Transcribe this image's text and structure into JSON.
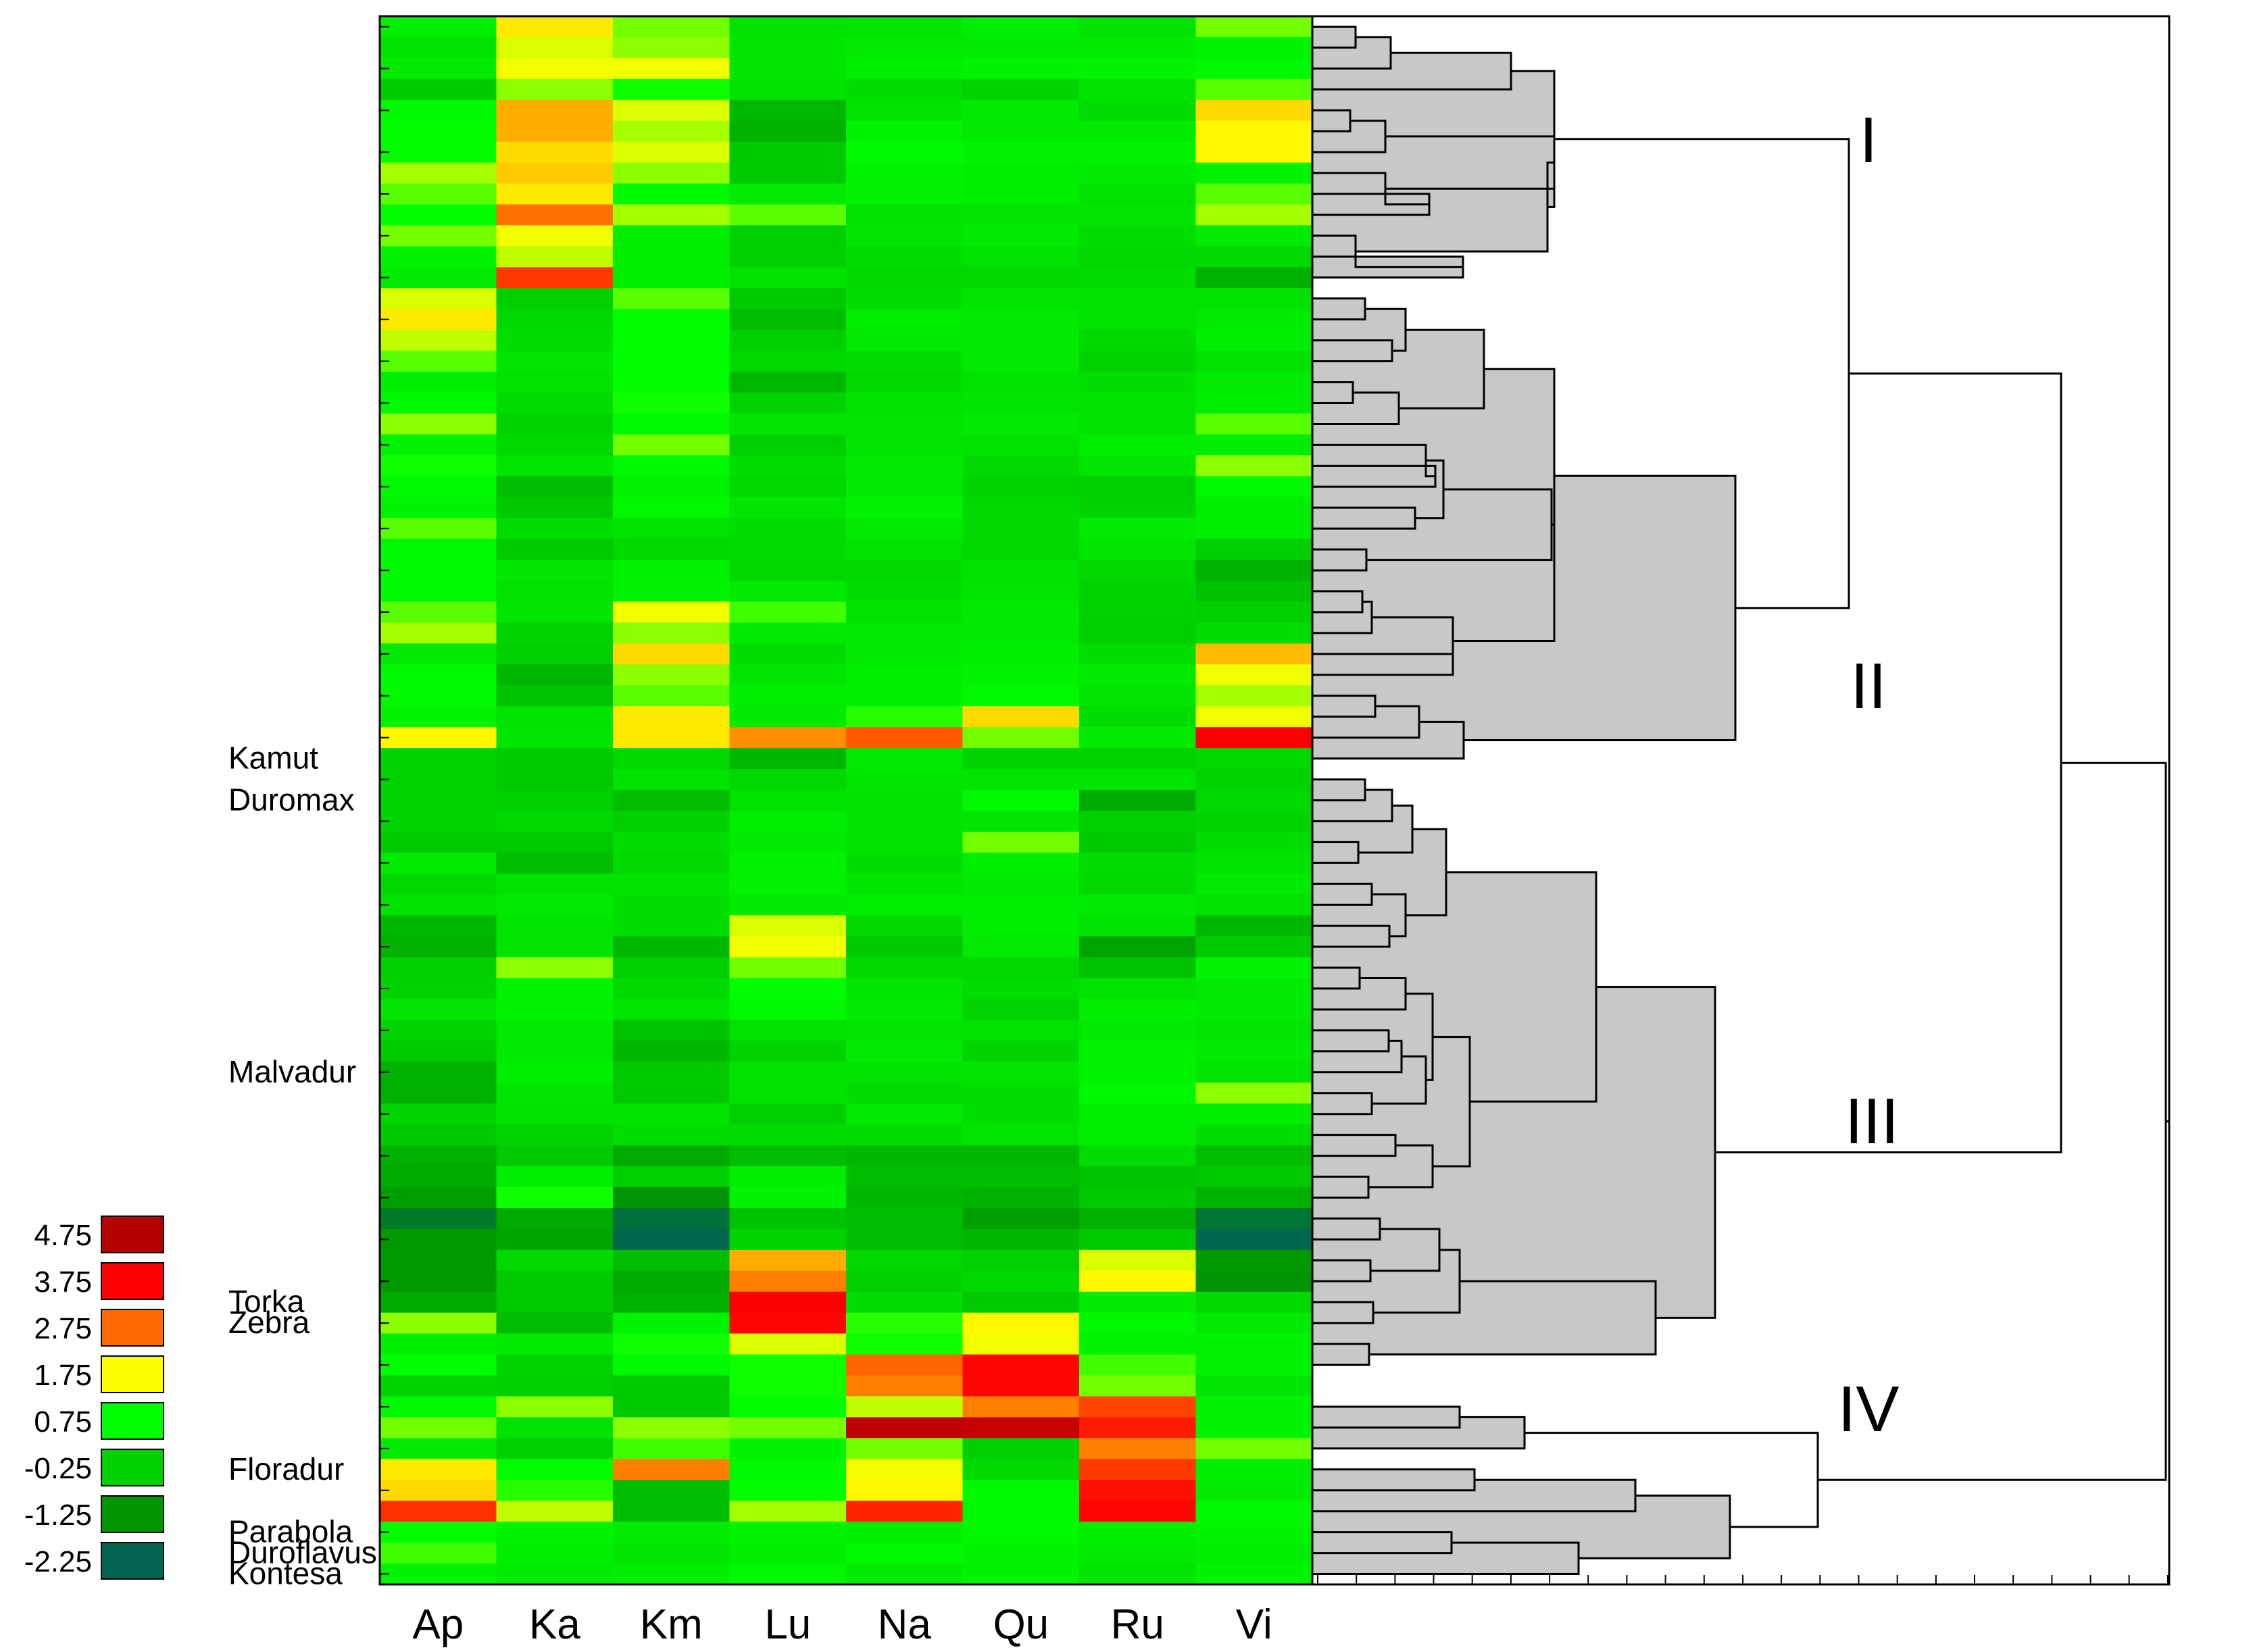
{
  "chart_data": {
    "type": "heatmap",
    "title": "",
    "columns": [
      "Ap",
      "Ka",
      "Km",
      "Lu",
      "Na",
      "Qu",
      "Ru",
      "Vi"
    ],
    "n_rows": 75,
    "row_labels": [
      {
        "row": 35,
        "label": "Kamut"
      },
      {
        "row": 37,
        "label": "Duromax"
      },
      {
        "row": 50,
        "label": "Malvadur"
      },
      {
        "row": 61,
        "label": "Torka"
      },
      {
        "row": 62,
        "label": "Zebra"
      },
      {
        "row": 69,
        "label": "Floradur"
      },
      {
        "row": 72,
        "label": "Parabola"
      },
      {
        "row": 73,
        "label": "Duroflavus"
      },
      {
        "row": 74,
        "label": "Kontesa"
      }
    ],
    "color_scale": {
      "values": [
        4.75,
        3.75,
        2.75,
        1.75,
        0.75,
        -0.25,
        -1.25,
        -2.25
      ],
      "labels": [
        "4.75",
        "3.75",
        "2.75",
        "1.75",
        "0.75",
        "-0.25",
        "-1.25",
        "-2.25"
      ],
      "colors": [
        "#b40000",
        "#ff0000",
        "#ff6a00",
        "#ffff00",
        "#00ff00",
        "#00d200",
        "#009600",
        "#006450"
      ]
    },
    "cluster_labels": [
      "I",
      "II",
      "III",
      "IV"
    ],
    "cluster_ranges": [
      [
        0,
        12
      ],
      [
        13,
        35
      ],
      [
        36,
        65
      ],
      [
        66,
        74
      ]
    ],
    "values": [
      [
        0.4,
        1.9,
        1.2,
        0.1,
        0.2,
        0.4,
        0.1,
        1.2
      ],
      [
        0.1,
        1.6,
        1.3,
        0.2,
        0.3,
        0.3,
        0.3,
        0.5
      ],
      [
        0.3,
        1.7,
        1.7,
        0.2,
        0.4,
        0.5,
        0.5,
        0.6
      ],
      [
        -0.4,
        1.3,
        0.8,
        0.1,
        0.0,
        -0.2,
        0.1,
        1.1
      ],
      [
        0.6,
        2.3,
        1.6,
        -0.7,
        0.1,
        0.3,
        0.0,
        2.0
      ],
      [
        0.7,
        2.3,
        1.4,
        -0.8,
        0.5,
        0.3,
        0.3,
        1.8
      ],
      [
        0.7,
        2.0,
        1.6,
        -0.4,
        0.6,
        0.5,
        0.5,
        1.8
      ],
      [
        1.4,
        2.1,
        1.3,
        -0.4,
        0.5,
        0.4,
        0.3,
        0.5
      ],
      [
        1.1,
        1.9,
        0.6,
        0.3,
        0.5,
        0.4,
        0.1,
        1.1
      ],
      [
        0.7,
        2.7,
        1.4,
        1.1,
        0.1,
        0.2,
        0.2,
        1.4
      ],
      [
        1.2,
        1.7,
        0.4,
        -0.3,
        0.2,
        0.3,
        0.0,
        0.3
      ],
      [
        0.5,
        1.5,
        0.4,
        -0.3,
        0.0,
        0.1,
        -0.1,
        -0.1
      ],
      [
        0.3,
        3.2,
        0.4,
        0.1,
        -0.1,
        -0.1,
        0.0,
        -0.8
      ],
      [
        1.6,
        -0.3,
        1.1,
        -0.4,
        0.0,
        0.2,
        0.1,
        0.1
      ],
      [
        1.9,
        -0.1,
        0.7,
        -0.6,
        0.4,
        0.3,
        0.1,
        0.3
      ],
      [
        1.5,
        0.0,
        0.7,
        -0.3,
        0.3,
        0.3,
        -0.1,
        0.4
      ],
      [
        1.1,
        0.2,
        0.7,
        -0.1,
        0.0,
        0.3,
        -0.2,
        0.1
      ],
      [
        0.4,
        0.1,
        0.7,
        -0.7,
        -0.1,
        0.1,
        0.0,
        0.3
      ],
      [
        0.6,
        0.0,
        0.8,
        -0.2,
        0.1,
        0.2,
        0.1,
        0.4
      ],
      [
        1.3,
        -0.2,
        0.6,
        0.2,
        0.2,
        0.3,
        0.1,
        1.1
      ],
      [
        0.5,
        -0.1,
        1.2,
        -0.3,
        0.2,
        0.1,
        0.4,
        0.4
      ],
      [
        0.8,
        0.2,
        0.6,
        0.0,
        0.3,
        -0.1,
        0.2,
        1.3
      ],
      [
        0.6,
        -0.6,
        0.5,
        -0.1,
        0.3,
        -0.2,
        -0.3,
        0.6
      ],
      [
        0.5,
        -0.4,
        0.6,
        0.2,
        0.5,
        -0.1,
        -0.2,
        0.4
      ],
      [
        1.1,
        0.0,
        0.1,
        0.0,
        0.3,
        -0.1,
        0.3,
        0.4
      ],
      [
        0.6,
        -0.4,
        -0.1,
        0.0,
        0.1,
        -0.1,
        0.2,
        -0.3
      ],
      [
        0.6,
        0.2,
        0.5,
        -0.1,
        -0.1,
        0.1,
        -0.1,
        -0.8
      ],
      [
        0.6,
        0.1,
        0.5,
        0.3,
        0.0,
        0.2,
        -0.2,
        -0.5
      ],
      [
        1.1,
        0.2,
        1.7,
        1.0,
        0.1,
        0.3,
        -0.2,
        -0.3
      ],
      [
        1.4,
        -0.2,
        1.3,
        0.3,
        0.3,
        0.3,
        -0.3,
        0.0
      ],
      [
        0.3,
        -0.3,
        2.0,
        0.0,
        0.3,
        0.4,
        0.0,
        2.2
      ],
      [
        0.6,
        -0.7,
        1.3,
        0.2,
        0.4,
        0.5,
        0.3,
        1.7
      ],
      [
        0.6,
        -0.5,
        1.1,
        0.4,
        0.4,
        0.6,
        0.2,
        1.4
      ],
      [
        0.5,
        0.1,
        1.9,
        0.3,
        0.9,
        2.0,
        0.0,
        1.7
      ],
      [
        1.8,
        0.2,
        1.9,
        2.5,
        2.9,
        1.2,
        0.3,
        3.8
      ],
      [
        -0.2,
        -0.4,
        -0.1,
        -0.7,
        0.3,
        -0.2,
        -0.2,
        -0.1
      ],
      [
        -0.2,
        -0.4,
        0.1,
        -0.1,
        0.2,
        0.2,
        0.2,
        -0.2
      ],
      [
        -0.2,
        -0.3,
        -0.6,
        0.1,
        0.1,
        0.6,
        -0.9,
        -0.1
      ],
      [
        -0.2,
        -0.1,
        -0.3,
        0.4,
        0.1,
        0.2,
        -0.3,
        -0.2
      ],
      [
        -0.4,
        -0.4,
        0.0,
        0.3,
        0.1,
        1.2,
        -0.4,
        0.0
      ],
      [
        0.3,
        -0.6,
        -0.1,
        0.5,
        0.0,
        0.4,
        0.0,
        0.1
      ],
      [
        -0.1,
        0.1,
        0.1,
        0.5,
        0.2,
        0.3,
        -0.1,
        0.3
      ],
      [
        0.1,
        0.3,
        0.0,
        0.3,
        0.4,
        0.4,
        0.3,
        0.1
      ],
      [
        -0.7,
        0.2,
        0.0,
        1.6,
        -0.1,
        0.4,
        0.1,
        -0.7
      ],
      [
        -0.8,
        0.2,
        -0.7,
        1.7,
        -0.4,
        0.3,
        -1.0,
        -0.4
      ],
      [
        -0.3,
        1.3,
        -0.3,
        1.2,
        -0.1,
        -0.1,
        -0.5,
        0.5
      ],
      [
        -0.2,
        0.5,
        -0.1,
        0.7,
        0.2,
        0.0,
        0.1,
        0.3
      ],
      [
        0.2,
        0.5,
        0.2,
        0.6,
        0.3,
        -0.2,
        0.4,
        0.3
      ],
      [
        -0.2,
        0.3,
        -0.5,
        0.1,
        0.2,
        0.1,
        0.3,
        0.2
      ],
      [
        -0.4,
        0.3,
        -0.7,
        -0.2,
        0.3,
        -0.2,
        0.5,
        0.3
      ],
      [
        -0.8,
        0.4,
        -0.4,
        0.1,
        0.1,
        0.2,
        0.5,
        0.2
      ],
      [
        -0.8,
        0.2,
        -0.4,
        0.1,
        0.0,
        0.0,
        0.6,
        1.3
      ],
      [
        -0.2,
        0.1,
        0.1,
        -0.3,
        0.3,
        0.0,
        0.4,
        0.4
      ],
      [
        -0.4,
        -0.2,
        0.0,
        0.0,
        0.0,
        0.2,
        0.4,
        0.0
      ],
      [
        -0.8,
        -0.4,
        -0.9,
        -0.6,
        -0.7,
        -0.7,
        0.0,
        -0.6
      ],
      [
        -0.9,
        0.4,
        -0.3,
        0.4,
        -0.6,
        -0.6,
        -0.5,
        -0.4
      ],
      [
        -1.1,
        0.8,
        -1.3,
        0.5,
        -0.7,
        -0.8,
        -0.4,
        -0.8
      ],
      [
        -1.8,
        -0.9,
        -2.0,
        -0.5,
        -0.6,
        -1.1,
        -0.8,
        -1.9
      ],
      [
        -1.2,
        -1.0,
        -2.2,
        -0.2,
        -0.6,
        -0.7,
        -0.4,
        -2.2
      ],
      [
        -1.2,
        -0.1,
        -0.6,
        2.3,
        -0.1,
        -0.3,
        1.6,
        -1.2
      ],
      [
        -1.2,
        -0.4,
        -0.9,
        2.6,
        -0.3,
        -0.1,
        1.8,
        -1.3
      ],
      [
        -0.9,
        -0.4,
        -0.8,
        3.8,
        0.0,
        -0.4,
        0.3,
        -0.1
      ],
      [
        1.3,
        -0.6,
        0.5,
        3.7,
        0.9,
        1.8,
        0.6,
        0.3
      ],
      [
        0.4,
        0.3,
        0.8,
        1.6,
        0.8,
        1.7,
        0.5,
        0.5
      ],
      [
        0.7,
        -0.2,
        0.6,
        0.8,
        2.8,
        3.7,
        1.0,
        0.5
      ],
      [
        -0.2,
        -0.3,
        -0.4,
        0.8,
        2.6,
        3.7,
        1.2,
        0.2
      ],
      [
        0.6,
        1.3,
        -0.4,
        0.7,
        1.5,
        2.6,
        3.1,
        0.5
      ],
      [
        1.2,
        0.1,
        1.3,
        1.2,
        4.6,
        4.5,
        3.5,
        0.5
      ],
      [
        0.3,
        -0.3,
        1.0,
        0.5,
        1.2,
        -0.3,
        2.6,
        1.2
      ],
      [
        1.9,
        0.7,
        2.6,
        0.6,
        1.7,
        -0.1,
        3.2,
        0.4
      ],
      [
        2.0,
        0.9,
        -0.6,
        0.7,
        1.8,
        0.6,
        3.6,
        0.3
      ],
      [
        3.3,
        1.5,
        -0.6,
        1.4,
        3.4,
        0.6,
        3.7,
        0.6
      ],
      [
        0.7,
        0.5,
        0.3,
        0.5,
        0.4,
        0.6,
        0.4,
        0.5
      ],
      [
        1.0,
        0.4,
        0.2,
        0.4,
        0.6,
        0.5,
        0.3,
        0.4
      ],
      [
        0.5,
        0.3,
        0.4,
        0.6,
        0.3,
        0.5,
        0.2,
        0.5
      ]
    ]
  }
}
